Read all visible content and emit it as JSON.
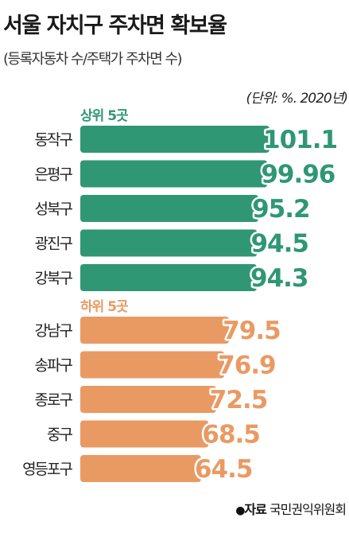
{
  "title": "서울 자치구 주차면 확보율",
  "subtitle": "(등록자동차 수/주택가 주차면 수)",
  "unit_note": "(단위: %. 2020년)",
  "source": {
    "label": "자료",
    "text": "국민권익위원회"
  },
  "colors": {
    "top": "#2f9773",
    "bottom": "#e99a63"
  },
  "chart_data": {
    "type": "bar",
    "orientation": "horizontal",
    "groups": [
      {
        "name": "상위 5곳",
        "color": "#2f9773",
        "categories": [
          "동작구",
          "은평구",
          "성북구",
          "광진구",
          "강북구"
        ],
        "values": [
          101.1,
          99.96,
          95.2,
          94.5,
          94.3
        ]
      },
      {
        "name": "하위 5곳",
        "color": "#e99a63",
        "categories": [
          "강남구",
          "송파구",
          "종로구",
          "중구",
          "영등포구"
        ],
        "values": [
          79.5,
          76.9,
          72.5,
          68.5,
          64.5
        ]
      }
    ],
    "value_labels": [
      "101.1",
      "99.96",
      "95.2",
      "94.5",
      "94.3",
      "79.5",
      "76.9",
      "72.5",
      "68.5",
      "64.5"
    ]
  }
}
